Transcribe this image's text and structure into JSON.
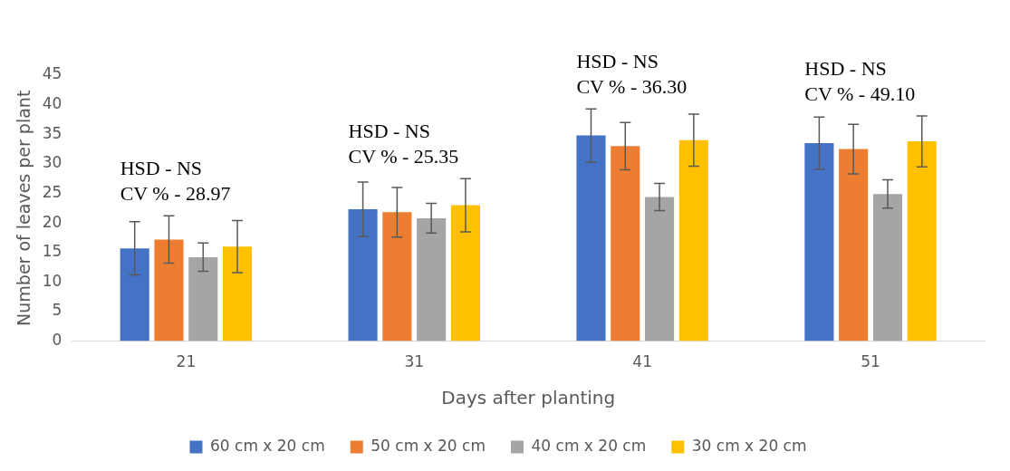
{
  "chart_data": {
    "type": "bar",
    "xlabel": "Days after planting",
    "ylabel": "Number of leaves per plant",
    "categories": [
      "21",
      "31",
      "41",
      "51"
    ],
    "series": [
      {
        "name": "60 cm x 20 cm",
        "color": "#4472c4",
        "values": [
          15.7,
          22.3,
          34.8,
          33.5
        ],
        "errors": [
          4.5,
          4.6,
          4.5,
          4.4
        ]
      },
      {
        "name": "50 cm x 20 cm",
        "color": "#ed7d31",
        "values": [
          17.2,
          21.8,
          33.0,
          32.5
        ],
        "errors": [
          4.0,
          4.2,
          4.0,
          4.2
        ]
      },
      {
        "name": "40 cm x 20 cm",
        "color": "#a5a5a5",
        "values": [
          14.2,
          20.8,
          24.4,
          24.9
        ],
        "errors": [
          2.4,
          2.5,
          2.3,
          2.4
        ]
      },
      {
        "name": "30 cm x 20 cm",
        "color": "#ffc000",
        "values": [
          16.0,
          23.0,
          34.0,
          33.8
        ],
        "errors": [
          4.4,
          4.5,
          4.4,
          4.3
        ]
      }
    ],
    "ylim": [
      0,
      45
    ],
    "yticks": [
      0,
      5,
      10,
      15,
      20,
      25,
      30,
      35,
      40,
      45
    ],
    "legend": "bottom",
    "annotations": [
      "HSD - NS",
      "CV % - 28.97",
      "HSD - NS",
      "CV % - 25.35",
      "HSD - NS",
      "CV % - 36.30",
      "HSD - NS",
      "CV % - 49.10"
    ]
  }
}
